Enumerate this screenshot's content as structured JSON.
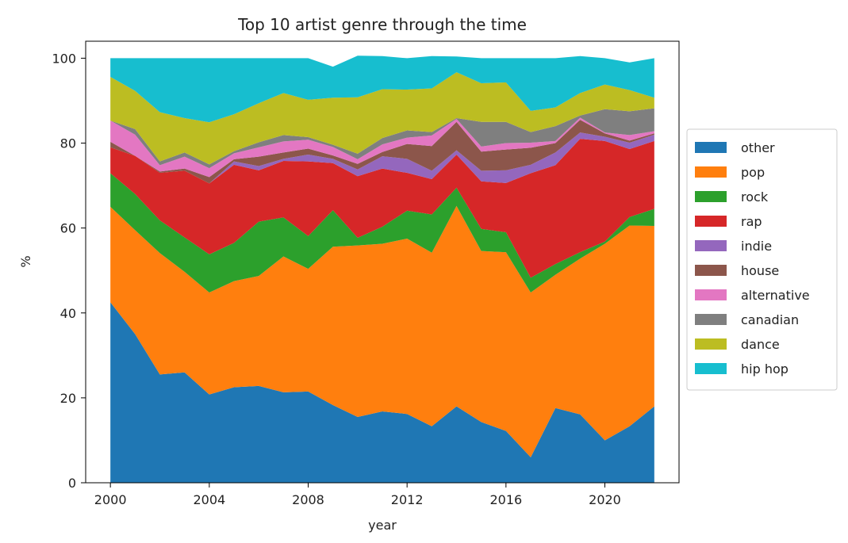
{
  "chart_data": {
    "type": "area",
    "stacked": true,
    "title": "Top 10 artist genre through the time",
    "xlabel": "year",
    "ylabel": "%",
    "xlim": [
      1999,
      2023
    ],
    "ylim": [
      0,
      104
    ],
    "xticks": [
      2000,
      2004,
      2008,
      2012,
      2016,
      2020
    ],
    "yticks": [
      0,
      20,
      40,
      60,
      80,
      100
    ],
    "grid": false,
    "legend_placement": "right",
    "x": [
      2000,
      2001,
      2002,
      2003,
      2004,
      2005,
      2006,
      2007,
      2008,
      2009,
      2010,
      2011,
      2012,
      2013,
      2014,
      2015,
      2016,
      2017,
      2018,
      2019,
      2020,
      2021,
      2022
    ],
    "series": [
      {
        "name": "other",
        "color": "#1f77b4",
        "values": [
          42.5,
          35.0,
          25.5,
          26.0,
          20.8,
          22.5,
          22.8,
          21.3,
          21.5,
          18.3,
          15.5,
          16.8,
          16.2,
          13.3,
          18.0,
          14.3,
          12.2,
          6.0,
          17.6,
          16.1,
          10.0,
          13.3,
          18.0
        ]
      },
      {
        "name": "pop",
        "color": "#ff7f0e",
        "values": [
          22.5,
          24.5,
          28.6,
          23.7,
          24.0,
          25.0,
          25.9,
          32.0,
          28.9,
          37.3,
          40.4,
          39.5,
          41.3,
          40.9,
          47.2,
          40.3,
          42.1,
          38.8,
          31.4,
          36.7,
          46.3,
          47.3,
          42.5
        ]
      },
      {
        "name": "rock",
        "color": "#2ca02c",
        "values": [
          7.9,
          8.5,
          7.7,
          8.1,
          9.0,
          9.0,
          12.8,
          9.2,
          7.7,
          8.6,
          1.8,
          4.0,
          6.6,
          9.0,
          4.3,
          5.2,
          4.7,
          3.5,
          2.5,
          1.5,
          0.5,
          2.0,
          4.0
        ]
      },
      {
        "name": "rap",
        "color": "#d62728",
        "values": [
          6.1,
          9.0,
          11.2,
          15.7,
          16.7,
          18.4,
          12.1,
          13.3,
          17.6,
          11.1,
          14.5,
          13.7,
          8.9,
          8.3,
          7.8,
          11.2,
          11.6,
          24.6,
          23.3,
          26.7,
          23.7,
          16.0,
          16.0
        ]
      },
      {
        "name": "indie",
        "color": "#9467bd",
        "values": [
          0,
          0,
          0,
          0,
          0,
          0.8,
          1.0,
          0.5,
          1.6,
          1.0,
          1.6,
          2.9,
          3.3,
          2.0,
          1.0,
          2.5,
          3.0,
          2.0,
          3.0,
          1.5,
          1.0,
          1.5,
          1.5
        ]
      },
      {
        "name": "house",
        "color": "#8c564b",
        "values": [
          1.3,
          0,
          0.3,
          0.5,
          1.5,
          0.5,
          2.2,
          1.5,
          1.4,
          0.8,
          1.3,
          1.0,
          3.5,
          5.8,
          6.7,
          4.5,
          4.9,
          4.0,
          2.2,
          3.0,
          0.8,
          0.5,
          0.3
        ]
      },
      {
        "name": "alternative",
        "color": "#e377c2",
        "values": [
          5.0,
          5.0,
          1.5,
          2.8,
          2.1,
          1.4,
          2.2,
          2.6,
          2.1,
          2.0,
          1.1,
          1.8,
          1.5,
          2.5,
          0.7,
          1.2,
          1.5,
          1.2,
          0.5,
          0.5,
          0.2,
          1.3,
          0.5
        ]
      },
      {
        "name": "canadian",
        "color": "#7f7f7f",
        "values": [
          0,
          1.3,
          0.9,
          1.0,
          0.9,
          0.5,
          1.2,
          1.5,
          0.6,
          0.5,
          1.3,
          1.5,
          1.7,
          0.8,
          0.2,
          5.8,
          5.0,
          2.5,
          3.5,
          0.5,
          5.5,
          5.6,
          5.4
        ]
      },
      {
        "name": "dance",
        "color": "#bcbd22",
        "values": [
          10.3,
          9.0,
          11.6,
          8.1,
          9.9,
          8.7,
          9.2,
          9.9,
          8.8,
          11.1,
          13.3,
          11.5,
          9.6,
          10.3,
          10.8,
          9.1,
          9.3,
          5.0,
          4.4,
          5.3,
          5.8,
          5.0,
          2.5
        ]
      },
      {
        "name": "hip hop",
        "color": "#17becf",
        "values": [
          4.4,
          7.7,
          12.7,
          14.1,
          15.1,
          13.2,
          10.6,
          8.2,
          9.8,
          7.3,
          9.8,
          7.8,
          7.4,
          7.6,
          3.7,
          5.9,
          5.7,
          12.4,
          11.6,
          8.7,
          6.2,
          6.5,
          9.3
        ]
      }
    ]
  }
}
